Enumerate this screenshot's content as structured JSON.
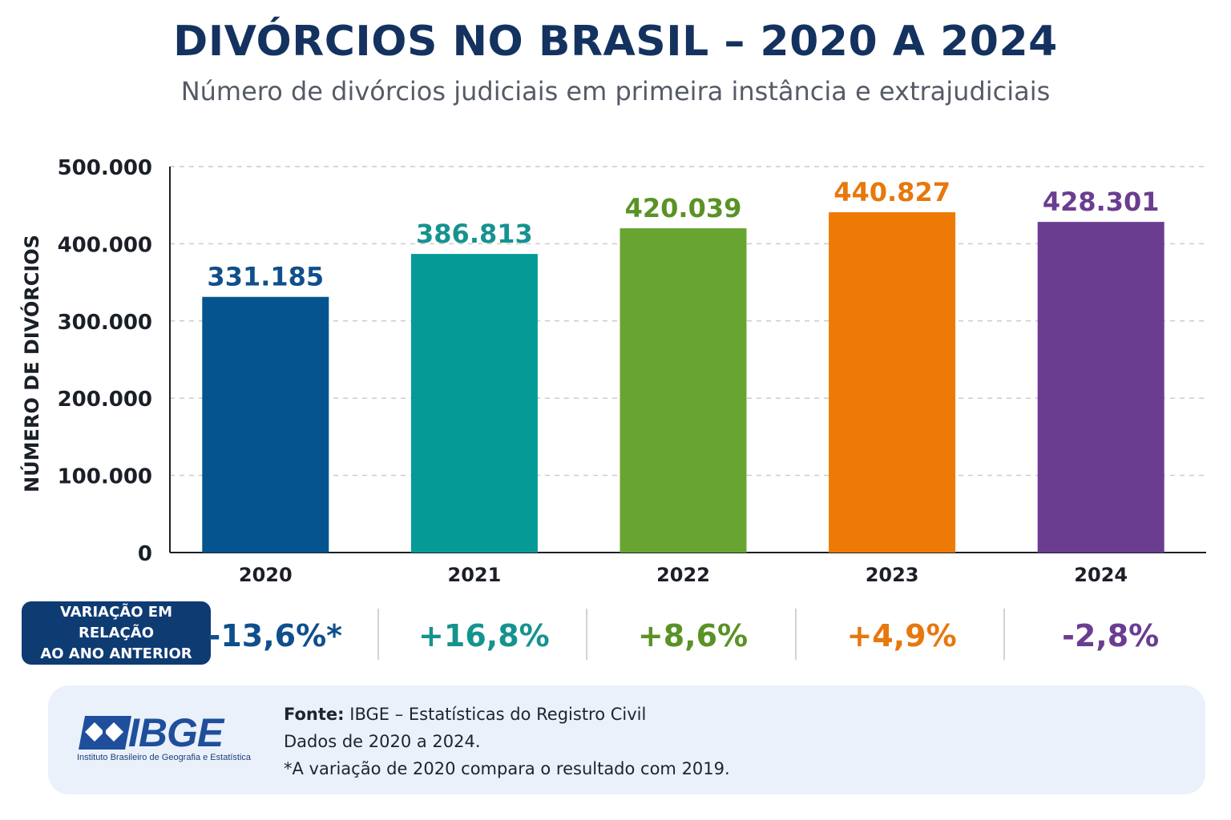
{
  "header": {
    "title": "DIVÓRCIOS NO BRASIL – 2020 A 2024",
    "subtitle": "Número de divórcios judiciais em primeira instância e extrajudiciais"
  },
  "chart_data": {
    "type": "bar",
    "categories": [
      "2020",
      "2021",
      "2022",
      "2023",
      "2024"
    ],
    "values": [
      331185,
      386813,
      420039,
      440827,
      428301
    ],
    "value_labels": [
      "331.185",
      "386.813",
      "420.039",
      "440.827",
      "428.301"
    ],
    "colors": [
      "#05548f",
      "#069a96",
      "#68a530",
      "#ee7a06",
      "#6a3d91"
    ],
    "label_colors": [
      "#0f4f8c",
      "#15938f",
      "#5a9226",
      "#e7780d",
      "#6a3d91"
    ],
    "ylabel": "NÚMERO DE DIVÓRCIOS",
    "ylim": [
      0,
      500000
    ],
    "yticks": [
      0,
      100000,
      200000,
      300000,
      400000,
      500000
    ],
    "ytick_labels": [
      "0",
      "100.000",
      "200.000",
      "300.000",
      "400.000",
      "500.000"
    ],
    "grid": true
  },
  "variation": {
    "label_line1": "VARIAÇÃO EM RELAÇÃO",
    "label_line2": "AO ANO ANTERIOR",
    "values": [
      "-13,6%*",
      "+16,8%",
      "+8,6%",
      "+4,9%",
      "-2,8%"
    ]
  },
  "footer": {
    "logo_text": "IBGE",
    "logo_subtitle": "Instituto Brasileiro de Geografia e Estatística",
    "source_label": "Fonte:",
    "source_text": "IBGE – Estatísticas do Registro Civil",
    "data_range": "Dados de 2020 a 2024.",
    "note": "*A variação de 2020 compara o resultado com 2019."
  }
}
